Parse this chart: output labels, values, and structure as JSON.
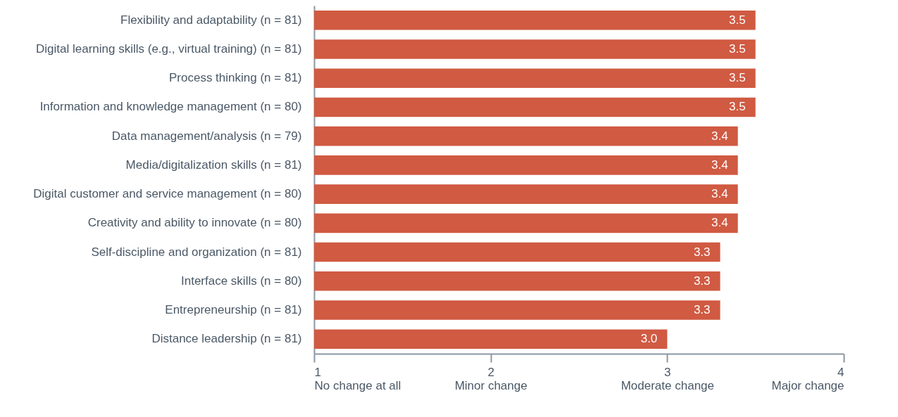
{
  "chart_data": {
    "type": "bar",
    "orientation": "horizontal",
    "color": "#d05a42",
    "grid": false,
    "value_labels": [
      "3.5",
      "3.5",
      "3.5",
      "3.5",
      "3.4",
      "3.4",
      "3.4",
      "3.4",
      "3.3",
      "3.3",
      "3.3",
      "3.0"
    ],
    "categories": [
      "Flexibility and adaptability (n = 81)",
      "Digital learning skills (e.g., virtual training) (n = 81)",
      "Process thinking (n = 81)",
      "Information and knowledge management (n = 80)",
      "Data management/analysis (n = 79)",
      "Media/digitalization skills (n = 81)",
      "Digital customer and service management  (n = 80)",
      "Creativity and ability to innovate (n = 80)",
      "Self-discipline and organization (n = 81)",
      "Interface skills (n = 80)",
      "Entrepreneurship (n = 81)",
      "Distance leadership (n = 81)"
    ],
    "values": [
      3.5,
      3.5,
      3.5,
      3.5,
      3.4,
      3.4,
      3.4,
      3.4,
      3.3,
      3.3,
      3.3,
      3.0
    ],
    "xlim": [
      1,
      4
    ],
    "xticks": [
      {
        "value": 1,
        "label": "1\nNo change at all"
      },
      {
        "value": 2,
        "label": "2\nMinor change"
      },
      {
        "value": 3,
        "label": "3\nModerate change"
      },
      {
        "value": 4,
        "label": "4\nMajor change"
      }
    ]
  }
}
